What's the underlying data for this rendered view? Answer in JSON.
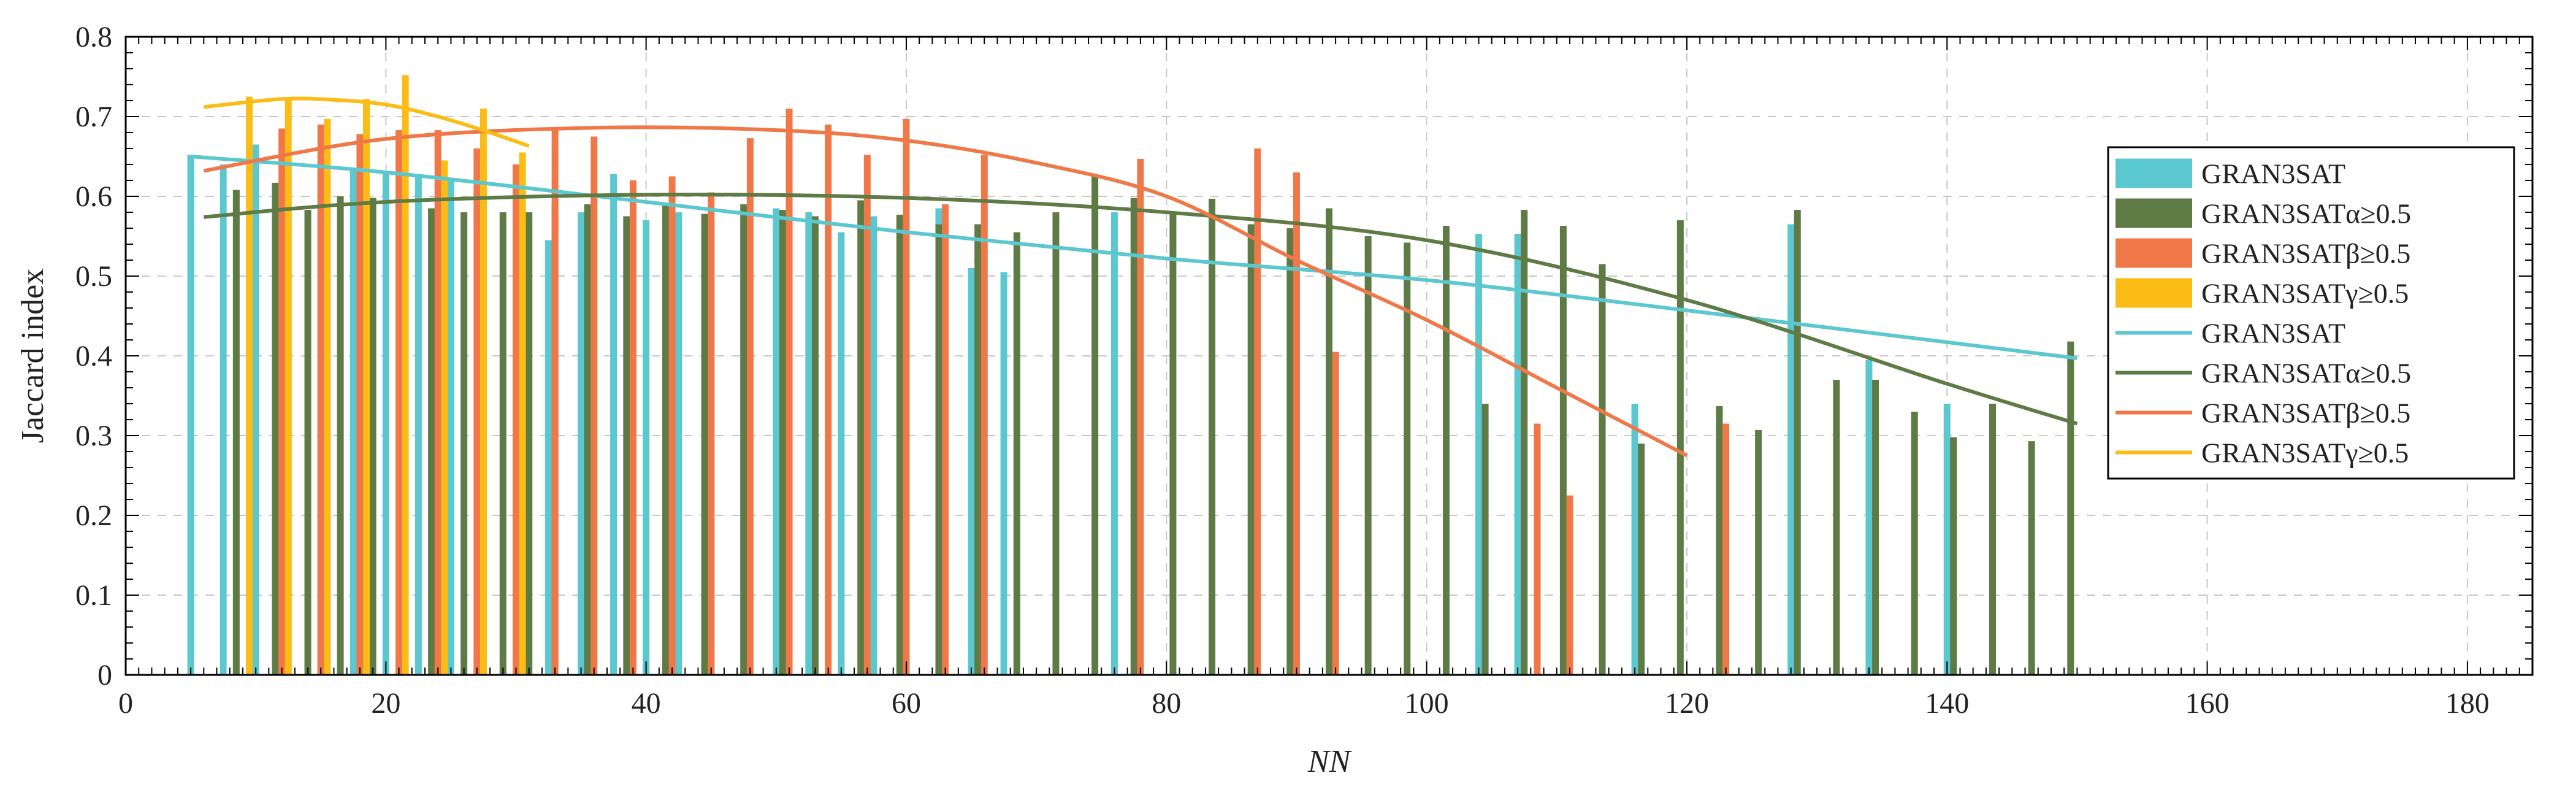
{
  "chart_data": {
    "type": "bar",
    "xlabel": "NN",
    "ylabel": "Jaccard index",
    "xlim": [
      0,
      185
    ],
    "ylim": [
      0,
      0.8
    ],
    "xticks": [
      0,
      20,
      40,
      60,
      80,
      100,
      120,
      140,
      160,
      180
    ],
    "yticks": [
      0,
      0.1,
      0.2,
      0.3,
      0.4,
      0.5,
      0.6,
      0.7,
      0.8
    ],
    "grid": true,
    "legend_position": "right",
    "colors": {
      "GRAN3SAT": "#5bc8cf",
      "alpha": "#5e7a45",
      "beta": "#f07848",
      "gamma": "#fbbd15"
    },
    "bar_series": [
      {
        "name": "GRAN3SAT",
        "label": "GRAN3SAT",
        "color": "#5bc8cf",
        "points": [
          [
            5,
            0.652
          ],
          [
            7.5,
            0.64
          ],
          [
            10,
            0.665
          ],
          [
            12.5,
            0.645
          ],
          [
            15,
            0.642
          ],
          [
            17.5,
            0.635
          ],
          [
            20,
            0.63
          ],
          [
            22.5,
            0.625
          ],
          [
            25,
            0.62
          ],
          [
            27.5,
            0.63
          ],
          [
            30,
            0.615
          ],
          [
            32.5,
            0.545
          ],
          [
            35,
            0.58
          ],
          [
            37.5,
            0.628
          ],
          [
            40,
            0.57
          ],
          [
            42.5,
            0.58
          ],
          [
            45,
            0.568
          ],
          [
            47.5,
            0.59
          ],
          [
            50,
            0.585
          ],
          [
            52.5,
            0.58
          ],
          [
            55,
            0.555
          ],
          [
            57.5,
            0.575
          ],
          [
            60,
            0.53
          ],
          [
            62.5,
            0.585
          ],
          [
            65,
            0.51
          ],
          [
            67.5,
            0.505
          ],
          [
            76,
            0.58
          ],
          [
            89.5,
            0.52
          ],
          [
            104,
            0.553
          ],
          [
            107,
            0.553
          ],
          [
            116,
            0.34
          ],
          [
            128,
            0.565
          ],
          [
            134,
            0.395
          ],
          [
            140,
            0.34
          ]
        ]
      },
      {
        "name": "GRAN3SAT_alpha",
        "label": "GRAN3SATα≥0.5",
        "color": "#5e7a45",
        "points": [
          [
            8.5,
            0.608
          ],
          [
            11.5,
            0.617
          ],
          [
            14,
            0.583
          ],
          [
            16.5,
            0.6
          ],
          [
            19,
            0.598
          ],
          [
            21,
            0.6
          ],
          [
            23.5,
            0.585
          ],
          [
            26,
            0.58
          ],
          [
            29,
            0.58
          ],
          [
            31,
            0.58
          ],
          [
            33,
            0.59
          ],
          [
            35.5,
            0.59
          ],
          [
            38.5,
            0.575
          ],
          [
            41.5,
            0.59
          ],
          [
            44.5,
            0.578
          ],
          [
            47.5,
            0.59
          ],
          [
            50.5,
            0.583
          ],
          [
            53,
            0.575
          ],
          [
            56.5,
            0.595
          ],
          [
            59.5,
            0.577
          ],
          [
            62.5,
            0.565
          ],
          [
            65.5,
            0.565
          ],
          [
            68.5,
            0.555
          ],
          [
            71.5,
            0.58
          ],
          [
            74.5,
            0.627
          ],
          [
            77.5,
            0.598
          ],
          [
            80.5,
            0.578
          ],
          [
            83.5,
            0.597
          ],
          [
            86.5,
            0.565
          ],
          [
            89.5,
            0.56
          ],
          [
            92.5,
            0.585
          ],
          [
            95.5,
            0.55
          ],
          [
            98.5,
            0.542
          ],
          [
            101.5,
            0.563
          ],
          [
            104.5,
            0.34
          ],
          [
            107.5,
            0.583
          ],
          [
            110.5,
            0.563
          ],
          [
            113.5,
            0.515
          ],
          [
            116.5,
            0.29
          ],
          [
            119.5,
            0.57
          ],
          [
            122.5,
            0.337
          ],
          [
            125.5,
            0.307
          ],
          [
            128.5,
            0.583
          ],
          [
            131.5,
            0.37
          ],
          [
            134.5,
            0.37
          ],
          [
            137.5,
            0.33
          ],
          [
            140.5,
            0.298
          ],
          [
            143.5,
            0.34
          ],
          [
            146.5,
            0.293
          ],
          [
            149.5,
            0.418
          ]
        ]
      },
      {
        "name": "GRAN3SAT_beta",
        "label": "GRAN3SATβ≥0.5",
        "color": "#f07848",
        "points": [
          [
            12,
            0.685
          ],
          [
            15,
            0.69
          ],
          [
            18,
            0.678
          ],
          [
            21,
            0.683
          ],
          [
            24,
            0.683
          ],
          [
            27,
            0.66
          ],
          [
            30,
            0.64
          ],
          [
            33,
            0.683
          ],
          [
            36,
            0.675
          ],
          [
            39,
            0.62
          ],
          [
            42,
            0.625
          ],
          [
            45,
            0.605
          ],
          [
            48,
            0.673
          ],
          [
            51,
            0.71
          ],
          [
            54,
            0.69
          ],
          [
            57,
            0.652
          ],
          [
            60,
            0.697
          ],
          [
            63,
            0.59
          ],
          [
            66,
            0.652
          ],
          [
            78,
            0.647
          ],
          [
            87,
            0.66
          ],
          [
            90,
            0.63
          ],
          [
            93,
            0.405
          ],
          [
            108.5,
            0.315
          ],
          [
            111,
            0.225
          ],
          [
            123,
            0.315
          ]
        ]
      },
      {
        "name": "GRAN3SAT_gamma",
        "label": "GRAN3SATγ≥0.5",
        "color": "#fbbd15",
        "points": [
          [
            9.5,
            0.725
          ],
          [
            12.5,
            0.722
          ],
          [
            15.5,
            0.697
          ],
          [
            18.5,
            0.722
          ],
          [
            21.5,
            0.752
          ],
          [
            24.5,
            0.645
          ],
          [
            27.5,
            0.71
          ],
          [
            30.5,
            0.655
          ]
        ]
      }
    ],
    "line_series": [
      {
        "name": "GRAN3SAT_fit",
        "label": "GRAN3SAT",
        "color": "#5bc8cf",
        "points": [
          [
            5,
            0.65
          ],
          [
            20,
            0.63
          ],
          [
            40,
            0.593
          ],
          [
            60,
            0.555
          ],
          [
            80,
            0.522
          ],
          [
            100,
            0.495
          ],
          [
            120,
            0.457
          ],
          [
            150,
            0.397
          ]
        ]
      },
      {
        "name": "GRAN3SAT_alpha_fit",
        "label": "GRAN3SATα≥0.5",
        "color": "#5e7a45",
        "points": [
          [
            6,
            0.574
          ],
          [
            20,
            0.593
          ],
          [
            40,
            0.602
          ],
          [
            60,
            0.598
          ],
          [
            80,
            0.58
          ],
          [
            100,
            0.545
          ],
          [
            120,
            0.47
          ],
          [
            140,
            0.365
          ],
          [
            150,
            0.315
          ]
        ]
      },
      {
        "name": "GRAN3SAT_beta_fit",
        "label": "GRAN3SATβ≥0.5",
        "color": "#f07848",
        "points": [
          [
            6,
            0.632
          ],
          [
            20,
            0.672
          ],
          [
            36,
            0.686
          ],
          [
            50,
            0.683
          ],
          [
            60,
            0.67
          ],
          [
            70,
            0.642
          ],
          [
            80,
            0.6
          ],
          [
            90,
            0.52
          ],
          [
            100,
            0.445
          ],
          [
            110,
            0.36
          ],
          [
            120,
            0.275
          ]
        ]
      },
      {
        "name": "GRAN3SAT_gamma_fit",
        "label": "GRAN3SATγ≥0.5",
        "color": "#fbbd15",
        "points": [
          [
            6,
            0.712
          ],
          [
            12,
            0.722
          ],
          [
            16,
            0.721
          ],
          [
            20,
            0.715
          ],
          [
            24,
            0.7
          ],
          [
            28,
            0.68
          ],
          [
            31,
            0.663
          ]
        ]
      }
    ]
  }
}
